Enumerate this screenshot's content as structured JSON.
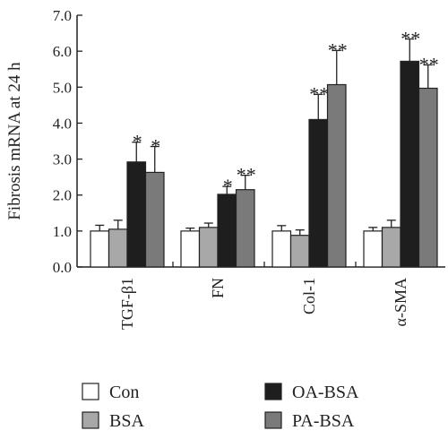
{
  "chart_data": {
    "type": "bar",
    "ylabel": "Fibrosis mRNA at 24 h",
    "xlabel": "",
    "ylim": [
      0,
      7.0
    ],
    "yticks": [
      "0.0",
      "1.0",
      "2.0",
      "3.0",
      "4.0",
      "5.0",
      "6.0",
      "7.0"
    ],
    "categories": [
      "TGF-β1",
      "FN",
      "Col-1",
      "α-SMA"
    ],
    "series": [
      {
        "name": "Con",
        "color": "#ffffff",
        "values": [
          1.0,
          1.0,
          1.0,
          1.0
        ],
        "errors": [
          0.16,
          0.08,
          0.15,
          0.1
        ],
        "significance": [
          "",
          "",
          "",
          ""
        ]
      },
      {
        "name": "BSA",
        "color": "#a8a8a8",
        "values": [
          1.05,
          1.1,
          0.88,
          1.1
        ],
        "errors": [
          0.25,
          0.12,
          0.15,
          0.2
        ],
        "significance": [
          "",
          "",
          "",
          ""
        ]
      },
      {
        "name": "OA-BSA",
        "color": "#1e1e1e",
        "values": [
          2.92,
          2.02,
          4.1,
          5.72
        ],
        "errors": [
          0.55,
          0.22,
          0.7,
          0.62
        ],
        "significance": [
          "*",
          "*",
          "**",
          "**"
        ]
      },
      {
        "name": "PA-BSA",
        "color": "#7a7a7a",
        "values": [
          2.63,
          2.15,
          5.07,
          4.97
        ],
        "errors": [
          0.72,
          0.4,
          0.95,
          0.65
        ],
        "significance": [
          "*",
          "**",
          "**",
          "**"
        ]
      }
    ],
    "legend_position": "bottom",
    "grid": false
  }
}
